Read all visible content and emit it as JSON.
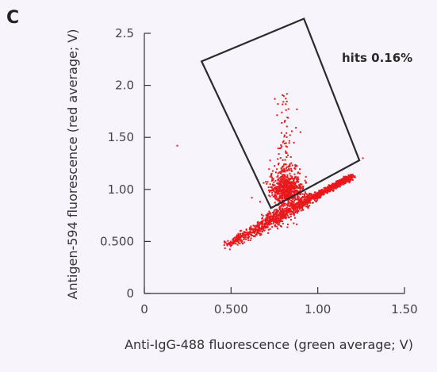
{
  "panel_label": "C",
  "chart_data": {
    "type": "scatter",
    "xlabel": "Anti-IgG-488 fluorescence (green average; V)",
    "ylabel": "Antigen-594 fluorescence (red average; V)",
    "xlim": [
      0,
      1.5
    ],
    "ylim": [
      0,
      2.5
    ],
    "x_ticks": [
      0,
      0.5,
      1.0,
      1.5
    ],
    "x_tick_labels": [
      "0",
      "0.500",
      "1.00",
      "1.50"
    ],
    "y_ticks": [
      0,
      0.5,
      1.0,
      1.5,
      2.0,
      2.5
    ],
    "y_tick_labels": [
      "0",
      "0.500",
      "1.00",
      "1.50",
      "2.0",
      "2.5"
    ],
    "point_color": "#e8191c",
    "gate": {
      "label": "hits 0.16%",
      "vertices": [
        [
          0.33,
          2.23
        ],
        [
          0.92,
          2.64
        ],
        [
          1.24,
          1.28
        ],
        [
          0.73,
          0.82
        ]
      ]
    },
    "clusters": [
      {
        "kind": "diagonal_band",
        "x_range": [
          0.47,
          1.2
        ],
        "y_at_start": 0.46,
        "y_at_end": 1.13,
        "count": 1400
      },
      {
        "kind": "blob",
        "center": [
          0.82,
          1.0
        ],
        "spread": [
          0.045,
          0.1
        ],
        "count": 700
      },
      {
        "kind": "column",
        "x_center": 0.81,
        "y_range": [
          1.1,
          1.95
        ],
        "count": 90
      },
      {
        "kind": "outliers",
        "points": [
          [
            0.19,
            1.42
          ],
          [
            0.77,
            1.82
          ],
          [
            0.88,
            1.77
          ],
          [
            0.9,
            1.55
          ],
          [
            0.62,
            0.92
          ],
          [
            0.72,
            0.66
          ],
          [
            1.26,
            1.3
          ],
          [
            0.51,
            0.52
          ]
        ]
      }
    ]
  }
}
